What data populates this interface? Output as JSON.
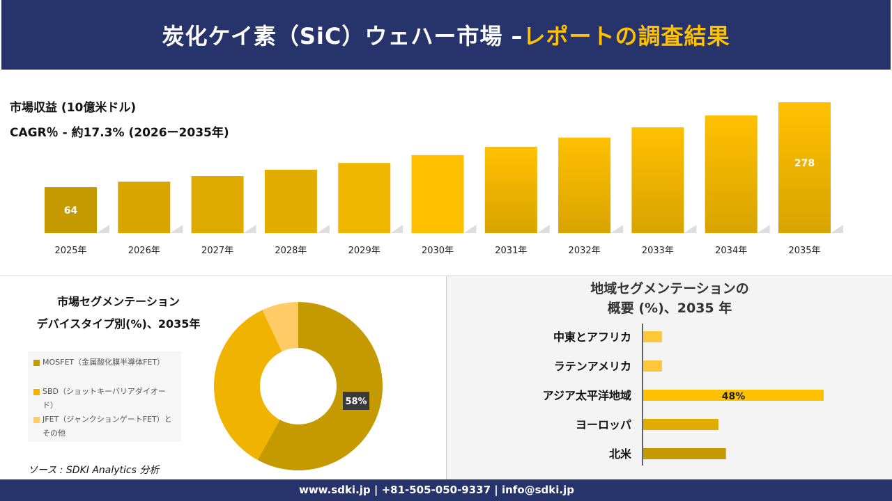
{
  "header": {
    "title_main": "炭化ケイ素（SiC）ウェハー市場 –",
    "title_highlight": "レポートの調査結果"
  },
  "colors": {
    "navy": "#27346b",
    "gold": "#ffc000",
    "dark_gold": "#c49a00",
    "mid_gold": "#e0ac00",
    "light_gold": "#ffcb66"
  },
  "chart_data": [
    {
      "type": "bar",
      "title": "市場収益 (10億米ドル)",
      "subtitle": "CAGR％ - 約17.3% (2026ー2035年)",
      "categories": [
        "2025年",
        "2026年",
        "2027年",
        "2028年",
        "2029年",
        "2030年",
        "2031年",
        "2032年",
        "2033年",
        "2034年",
        "2035年"
      ],
      "values": [
        64,
        78,
        92,
        108,
        125,
        145,
        166,
        189,
        215,
        245,
        278
      ],
      "data_labels": {
        "2025年": "64",
        "2035年": "278"
      }
    },
    {
      "type": "pie",
      "title": "市場セグメンテーション",
      "subtitle": "デバイスタイプ別(%)、2035年",
      "categories": [
        "MOSFET（金属酸化膜半導体FET）",
        "SBD（ショットキーバリアダイオード）",
        "JFET（ジャンクションゲートFET）とその他"
      ],
      "values": [
        58,
        35,
        7
      ],
      "data_labels": [
        "58%"
      ],
      "colors": [
        "#c49a00",
        "#f0b400",
        "#ffcb66"
      ],
      "legend": "left"
    },
    {
      "type": "bar",
      "orientation": "horizontal",
      "title": "地域セグメンテーションの",
      "subtitle": "概要 (%)、2035 年",
      "categories": [
        "中東とアフリカ",
        "ラテンアメリカ",
        "アジア太平洋地域",
        "ヨーロッパ",
        "北米"
      ],
      "values": [
        5,
        5,
        48,
        20,
        22
      ],
      "data_labels": [
        "",
        "",
        "48%",
        "",
        ""
      ],
      "colors": [
        "#ffc83a",
        "#ffc83a",
        "#ffc000",
        "#e0ac00",
        "#c49a00"
      ]
    }
  ],
  "source": "ソース : SDKI Analytics 分析",
  "footer": "www.sdki.jp | +81-505-050-9337 | info@sdki.jp"
}
